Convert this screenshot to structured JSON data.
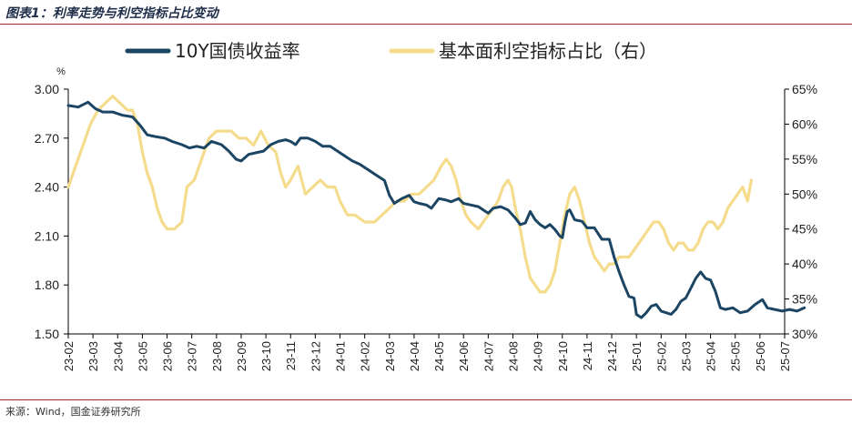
{
  "header": {
    "title": "图表1：利率走势与利空指标占比变动"
  },
  "footer": {
    "source": "来源：Wind，国金证券研究所"
  },
  "chart_data": {
    "type": "line",
    "left_unit": "%",
    "x_labels": [
      "23-02",
      "23-03",
      "23-04",
      "23-05",
      "23-06",
      "23-07",
      "23-08",
      "23-09",
      "23-10",
      "23-11",
      "23-12",
      "24-01",
      "24-02",
      "24-03",
      "24-04",
      "24-05",
      "24-06",
      "24-07",
      "24-08",
      "24-09",
      "24-10",
      "24-11",
      "24-12",
      "25-01",
      "25-02",
      "25-03",
      "25-04",
      "25-05",
      "25-06",
      "25-07"
    ],
    "y_left": {
      "min": 1.5,
      "max": 3.0,
      "ticks": [
        "1.50",
        "1.80",
        "2.10",
        "2.40",
        "2.70",
        "3.00"
      ]
    },
    "y_right": {
      "min": 30,
      "max": 65,
      "ticks": [
        "30%",
        "35%",
        "40%",
        "45%",
        "50%",
        "55%",
        "60%",
        "65%"
      ]
    },
    "series": [
      {
        "name": "10Y国债收益率",
        "axis": "left",
        "color": "#1b4563",
        "points": [
          [
            0,
            2.9
          ],
          [
            0.4,
            2.89
          ],
          [
            0.8,
            2.92
          ],
          [
            1.1,
            2.88
          ],
          [
            1.4,
            2.86
          ],
          [
            1.8,
            2.86
          ],
          [
            2.2,
            2.84
          ],
          [
            2.6,
            2.83
          ],
          [
            2.9,
            2.78
          ],
          [
            3.2,
            2.72
          ],
          [
            3.5,
            2.71
          ],
          [
            3.9,
            2.7
          ],
          [
            4.2,
            2.68
          ],
          [
            4.6,
            2.66
          ],
          [
            4.9,
            2.64
          ],
          [
            5.2,
            2.65
          ],
          [
            5.5,
            2.64
          ],
          [
            5.8,
            2.68
          ],
          [
            6.0,
            2.67
          ],
          [
            6.2,
            2.66
          ],
          [
            6.5,
            2.62
          ],
          [
            6.8,
            2.57
          ],
          [
            7.0,
            2.56
          ],
          [
            7.3,
            2.6
          ],
          [
            7.6,
            2.61
          ],
          [
            7.9,
            2.62
          ],
          [
            8.2,
            2.66
          ],
          [
            8.5,
            2.68
          ],
          [
            8.8,
            2.69
          ],
          [
            9.0,
            2.68
          ],
          [
            9.2,
            2.66
          ],
          [
            9.4,
            2.7
          ],
          [
            9.7,
            2.7
          ],
          [
            10.0,
            2.68
          ],
          [
            10.3,
            2.65
          ],
          [
            10.6,
            2.65
          ],
          [
            10.9,
            2.62
          ],
          [
            11.2,
            2.59
          ],
          [
            11.5,
            2.56
          ],
          [
            11.8,
            2.54
          ],
          [
            12.1,
            2.51
          ],
          [
            12.4,
            2.48
          ],
          [
            12.8,
            2.44
          ],
          [
            13.0,
            2.35
          ],
          [
            13.2,
            2.3
          ],
          [
            13.5,
            2.33
          ],
          [
            13.8,
            2.35
          ],
          [
            14.0,
            2.31
          ],
          [
            14.2,
            2.3
          ],
          [
            14.5,
            2.29
          ],
          [
            14.7,
            2.27
          ],
          [
            15.0,
            2.33
          ],
          [
            15.3,
            2.32
          ],
          [
            15.5,
            2.31
          ],
          [
            15.8,
            2.33
          ],
          [
            16.0,
            2.3
          ],
          [
            16.3,
            2.29
          ],
          [
            16.6,
            2.28
          ],
          [
            16.8,
            2.26
          ],
          [
            17.0,
            2.24
          ],
          [
            17.2,
            2.27
          ],
          [
            17.5,
            2.28
          ],
          [
            17.8,
            2.26
          ],
          [
            18.1,
            2.21
          ],
          [
            18.3,
            2.17
          ],
          [
            18.5,
            2.18
          ],
          [
            18.7,
            2.25
          ],
          [
            18.9,
            2.2
          ],
          [
            19.1,
            2.17
          ],
          [
            19.3,
            2.15
          ],
          [
            19.5,
            2.17
          ],
          [
            19.7,
            2.14
          ],
          [
            19.9,
            2.1
          ],
          [
            20.0,
            2.09
          ],
          [
            20.1,
            2.18
          ],
          [
            20.2,
            2.25
          ],
          [
            20.3,
            2.26
          ],
          [
            20.5,
            2.2
          ],
          [
            20.8,
            2.19
          ],
          [
            21.0,
            2.15
          ],
          [
            21.3,
            2.15
          ],
          [
            21.6,
            2.08
          ],
          [
            21.9,
            2.08
          ],
          [
            22.1,
            1.97
          ],
          [
            22.3,
            1.88
          ],
          [
            22.5,
            1.8
          ],
          [
            22.7,
            1.73
          ],
          [
            22.9,
            1.72
          ],
          [
            23.0,
            1.62
          ],
          [
            23.2,
            1.6
          ],
          [
            23.4,
            1.63
          ],
          [
            23.6,
            1.67
          ],
          [
            23.8,
            1.68
          ],
          [
            24.0,
            1.64
          ],
          [
            24.2,
            1.63
          ],
          [
            24.4,
            1.62
          ],
          [
            24.6,
            1.65
          ],
          [
            24.8,
            1.7
          ],
          [
            25.0,
            1.72
          ],
          [
            25.2,
            1.78
          ],
          [
            25.4,
            1.84
          ],
          [
            25.6,
            1.88
          ],
          [
            25.8,
            1.84
          ],
          [
            26.0,
            1.83
          ],
          [
            26.2,
            1.76
          ],
          [
            26.4,
            1.66
          ],
          [
            26.6,
            1.65
          ],
          [
            26.9,
            1.66
          ],
          [
            27.2,
            1.63
          ],
          [
            27.5,
            1.64
          ],
          [
            27.8,
            1.68
          ],
          [
            28.1,
            1.71
          ],
          [
            28.3,
            1.66
          ],
          [
            28.6,
            1.65
          ],
          [
            28.9,
            1.64
          ],
          [
            29.2,
            1.65
          ],
          [
            29.5,
            1.64
          ],
          [
            29.8,
            1.66
          ]
        ]
      },
      {
        "name": "基本面利空指标占比（右）",
        "axis": "right",
        "color": "#f4dc8c",
        "points": [
          [
            0,
            51
          ],
          [
            0.3,
            54
          ],
          [
            0.6,
            57
          ],
          [
            0.9,
            60
          ],
          [
            1.2,
            62
          ],
          [
            1.5,
            63
          ],
          [
            1.8,
            64
          ],
          [
            2.1,
            63
          ],
          [
            2.4,
            62
          ],
          [
            2.6,
            62
          ],
          [
            2.8,
            60
          ],
          [
            3.0,
            56
          ],
          [
            3.2,
            53
          ],
          [
            3.4,
            51
          ],
          [
            3.6,
            48
          ],
          [
            3.8,
            46
          ],
          [
            4.0,
            45
          ],
          [
            4.3,
            45
          ],
          [
            4.6,
            46
          ],
          [
            4.8,
            51
          ],
          [
            5.1,
            52
          ],
          [
            5.4,
            55
          ],
          [
            5.7,
            58
          ],
          [
            6.0,
            59
          ],
          [
            6.3,
            59
          ],
          [
            6.6,
            59
          ],
          [
            6.9,
            58
          ],
          [
            7.2,
            58
          ],
          [
            7.5,
            57
          ],
          [
            7.8,
            59
          ],
          [
            8.1,
            57
          ],
          [
            8.4,
            56
          ],
          [
            8.6,
            53
          ],
          [
            8.8,
            51
          ],
          [
            9.0,
            52
          ],
          [
            9.3,
            54
          ],
          [
            9.6,
            50
          ],
          [
            9.9,
            51
          ],
          [
            10.2,
            52
          ],
          [
            10.5,
            51
          ],
          [
            10.8,
            51
          ],
          [
            11.0,
            49
          ],
          [
            11.3,
            47
          ],
          [
            11.6,
            47
          ],
          [
            12.0,
            46
          ],
          [
            12.4,
            46
          ],
          [
            12.7,
            47
          ],
          [
            13.0,
            48
          ],
          [
            13.3,
            49
          ],
          [
            13.6,
            49
          ],
          [
            13.9,
            50
          ],
          [
            14.2,
            50
          ],
          [
            14.5,
            51
          ],
          [
            14.8,
            52
          ],
          [
            15.1,
            54
          ],
          [
            15.3,
            55
          ],
          [
            15.5,
            54
          ],
          [
            15.7,
            52
          ],
          [
            15.9,
            49
          ],
          [
            16.1,
            47
          ],
          [
            16.3,
            46
          ],
          [
            16.6,
            45
          ],
          [
            16.8,
            46
          ],
          [
            17.0,
            47
          ],
          [
            17.2,
            48
          ],
          [
            17.4,
            49
          ],
          [
            17.6,
            51
          ],
          [
            17.8,
            52
          ],
          [
            17.95,
            51
          ],
          [
            18.1,
            48
          ],
          [
            18.3,
            45
          ],
          [
            18.5,
            41
          ],
          [
            18.7,
            38
          ],
          [
            18.9,
            37
          ],
          [
            19.1,
            36
          ],
          [
            19.3,
            36
          ],
          [
            19.5,
            37
          ],
          [
            19.7,
            39
          ],
          [
            19.9,
            43
          ],
          [
            20.1,
            47
          ],
          [
            20.3,
            50
          ],
          [
            20.5,
            51
          ],
          [
            20.7,
            49
          ],
          [
            20.9,
            46
          ],
          [
            21.1,
            43
          ],
          [
            21.3,
            41
          ],
          [
            21.5,
            40
          ],
          [
            21.7,
            39
          ],
          [
            21.9,
            40
          ],
          [
            22.1,
            40
          ],
          [
            22.3,
            41
          ],
          [
            22.5,
            41
          ],
          [
            22.7,
            41
          ],
          [
            22.9,
            42
          ],
          [
            23.1,
            43
          ],
          [
            23.3,
            44
          ],
          [
            23.5,
            45
          ],
          [
            23.7,
            46
          ],
          [
            23.9,
            46
          ],
          [
            24.1,
            45
          ],
          [
            24.3,
            43
          ],
          [
            24.5,
            42
          ],
          [
            24.7,
            43
          ],
          [
            24.9,
            43
          ],
          [
            25.1,
            42
          ],
          [
            25.3,
            42
          ],
          [
            25.5,
            43
          ],
          [
            25.7,
            45
          ],
          [
            25.9,
            46
          ],
          [
            26.1,
            46
          ],
          [
            26.3,
            45
          ],
          [
            26.5,
            46
          ],
          [
            26.7,
            48
          ],
          [
            26.9,
            49
          ],
          [
            27.1,
            50
          ],
          [
            27.3,
            51
          ],
          [
            27.5,
            49
          ],
          [
            27.6,
            51
          ],
          [
            27.65,
            52
          ]
        ]
      }
    ]
  }
}
